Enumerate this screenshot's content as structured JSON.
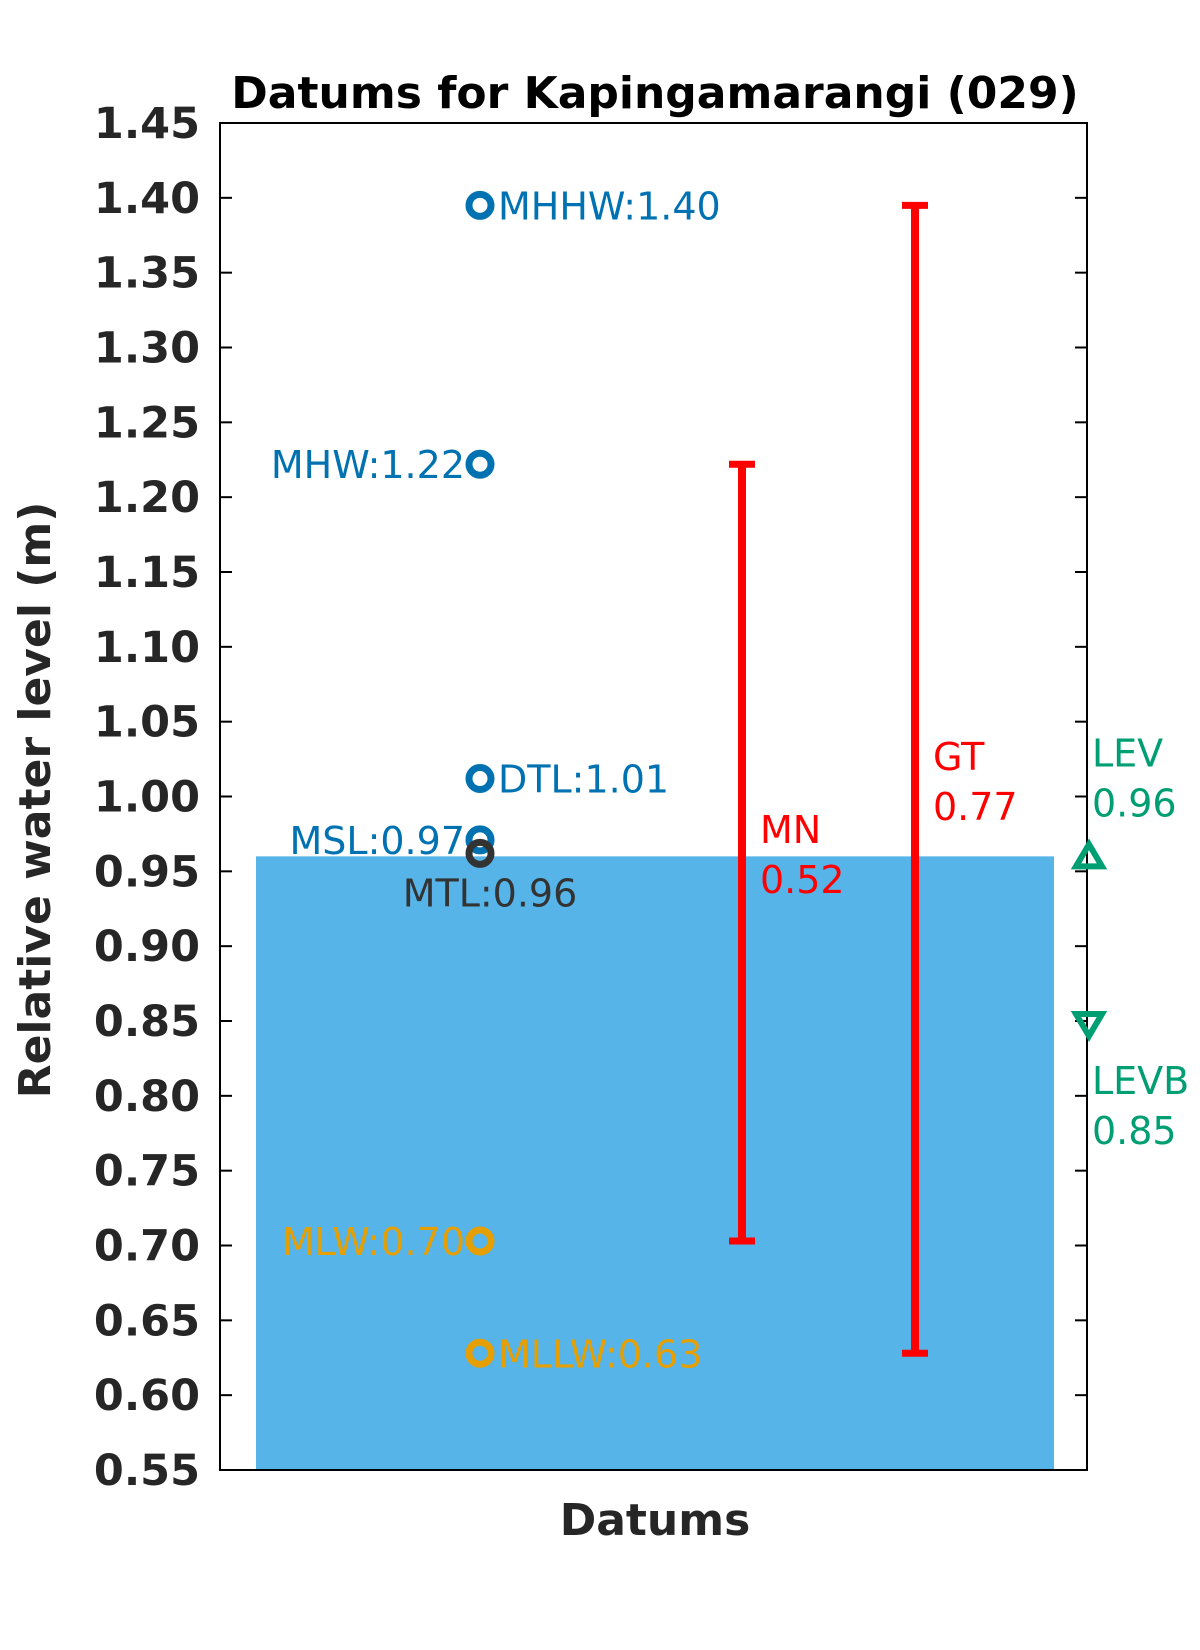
{
  "chart_data": {
    "type": "scatter",
    "title": "Datums for Kapingamarangi (029)",
    "xlabel": "Datums",
    "ylabel": "Relative water level (m)",
    "ylim": [
      0.55,
      1.45
    ],
    "yticks": [
      "0.55",
      "0.60",
      "0.65",
      "0.70",
      "0.75",
      "0.80",
      "0.85",
      "0.90",
      "0.95",
      "1.00",
      "1.05",
      "1.10",
      "1.15",
      "1.20",
      "1.25",
      "1.30",
      "1.35",
      "1.40",
      "1.45"
    ],
    "grid": false,
    "water_fill": {
      "top": 0.96,
      "color": "#56B4E9"
    },
    "datums": [
      {
        "name": "MHHW",
        "label": "MHHW:1.40",
        "value": 1.395,
        "color": "#0072B2",
        "label_side": "right"
      },
      {
        "name": "MHW",
        "label": "MHW:1.22",
        "value": 1.222,
        "color": "#0072B2",
        "label_side": "left"
      },
      {
        "name": "DTL",
        "label": "DTL:1.01",
        "value": 1.012,
        "color": "#0072B2",
        "label_side": "right"
      },
      {
        "name": "MSL",
        "label": "MSL:0.97",
        "value": 0.971,
        "color": "#0072B2",
        "label_side": "left"
      },
      {
        "name": "MTL",
        "label": "MTL:0.96",
        "value": 0.962,
        "color": "#333333",
        "label_side": "below"
      },
      {
        "name": "MLW",
        "label": "MLW:0.70",
        "value": 0.703,
        "color": "#E69F00",
        "label_side": "left"
      },
      {
        "name": "MLLW",
        "label": "MLLW:0.63",
        "value": 0.628,
        "color": "#E69F00",
        "label_side": "right"
      }
    ],
    "ranges": [
      {
        "name": "MN",
        "label_name": "MN",
        "label_value": "0.52",
        "low": 0.703,
        "high": 1.222,
        "color": "#FF0000"
      },
      {
        "name": "GT",
        "label_name": "GT",
        "label_value": "0.77",
        "low": 0.628,
        "high": 1.395,
        "color": "#FF0000"
      }
    ],
    "levels": [
      {
        "name": "LEV",
        "label_name": "LEV",
        "label_value": "0.96",
        "value": 0.96,
        "marker": "triangle-up",
        "color": "#009E73"
      },
      {
        "name": "LEVB",
        "label_name": "LEVB",
        "label_value": "0.85",
        "value": 0.848,
        "marker": "triangle-down",
        "color": "#009E73"
      }
    ]
  }
}
